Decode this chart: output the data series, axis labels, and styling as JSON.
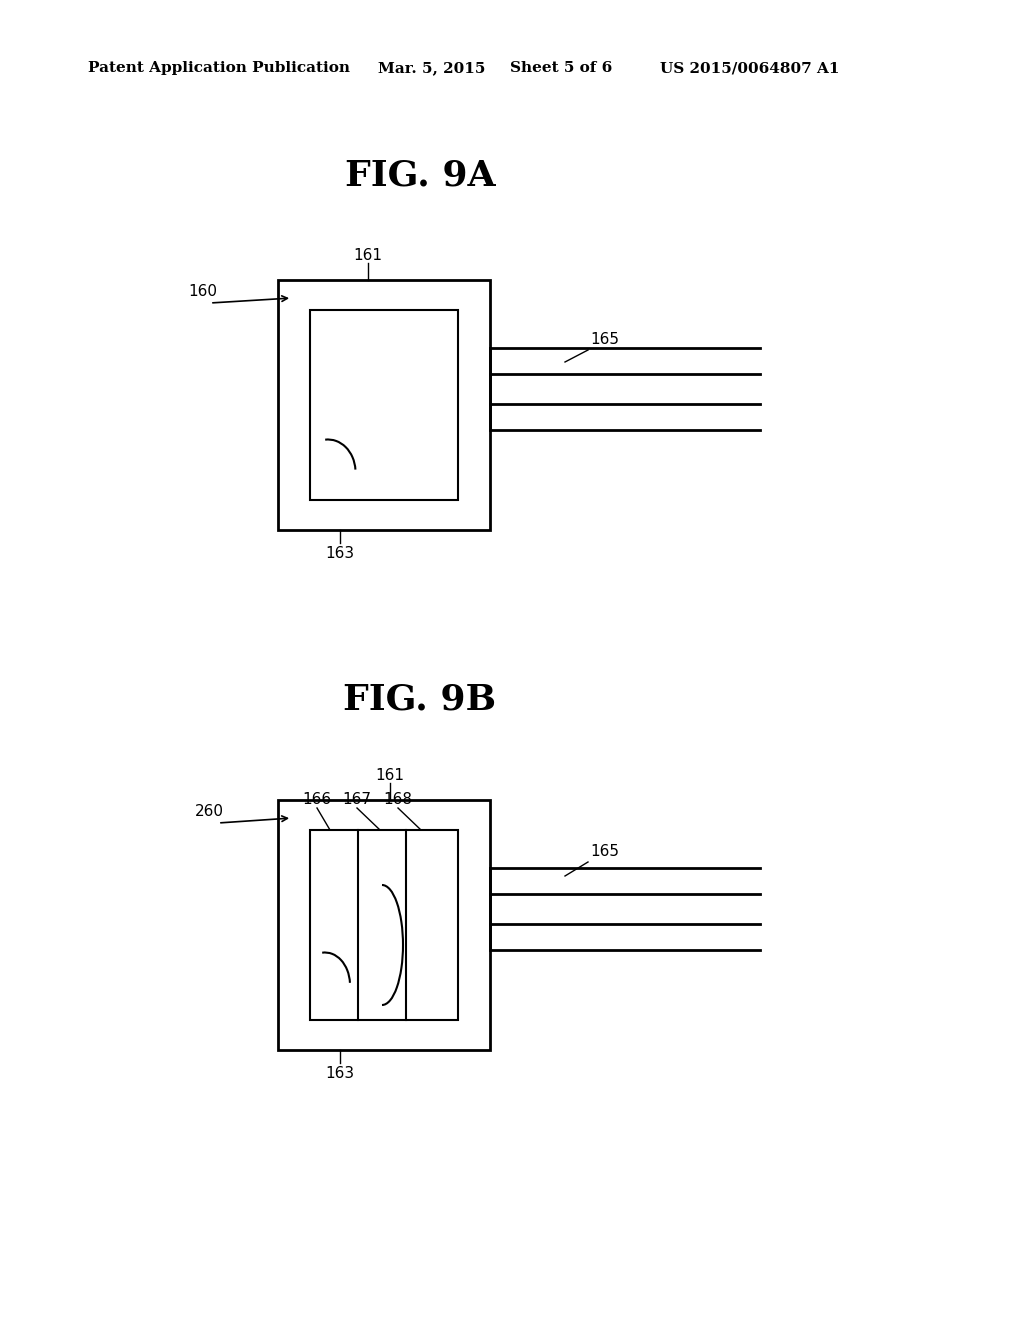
{
  "background_color": "#ffffff",
  "fig_width": 10.24,
  "fig_height": 13.2,
  "header_text": "Patent Application Publication",
  "header_date": "Mar. 5, 2015",
  "header_sheet": "Sheet 5 of 6",
  "header_patent": "US 2015/0064807 A1",
  "fig9a_title": "FIG. 9A",
  "fig9b_title": "FIG. 9B",
  "lw_thick": 2.0,
  "lw_thin": 1.5,
  "label_fontsize": 11,
  "title_fontsize": 26,
  "header_fontsize": 11
}
